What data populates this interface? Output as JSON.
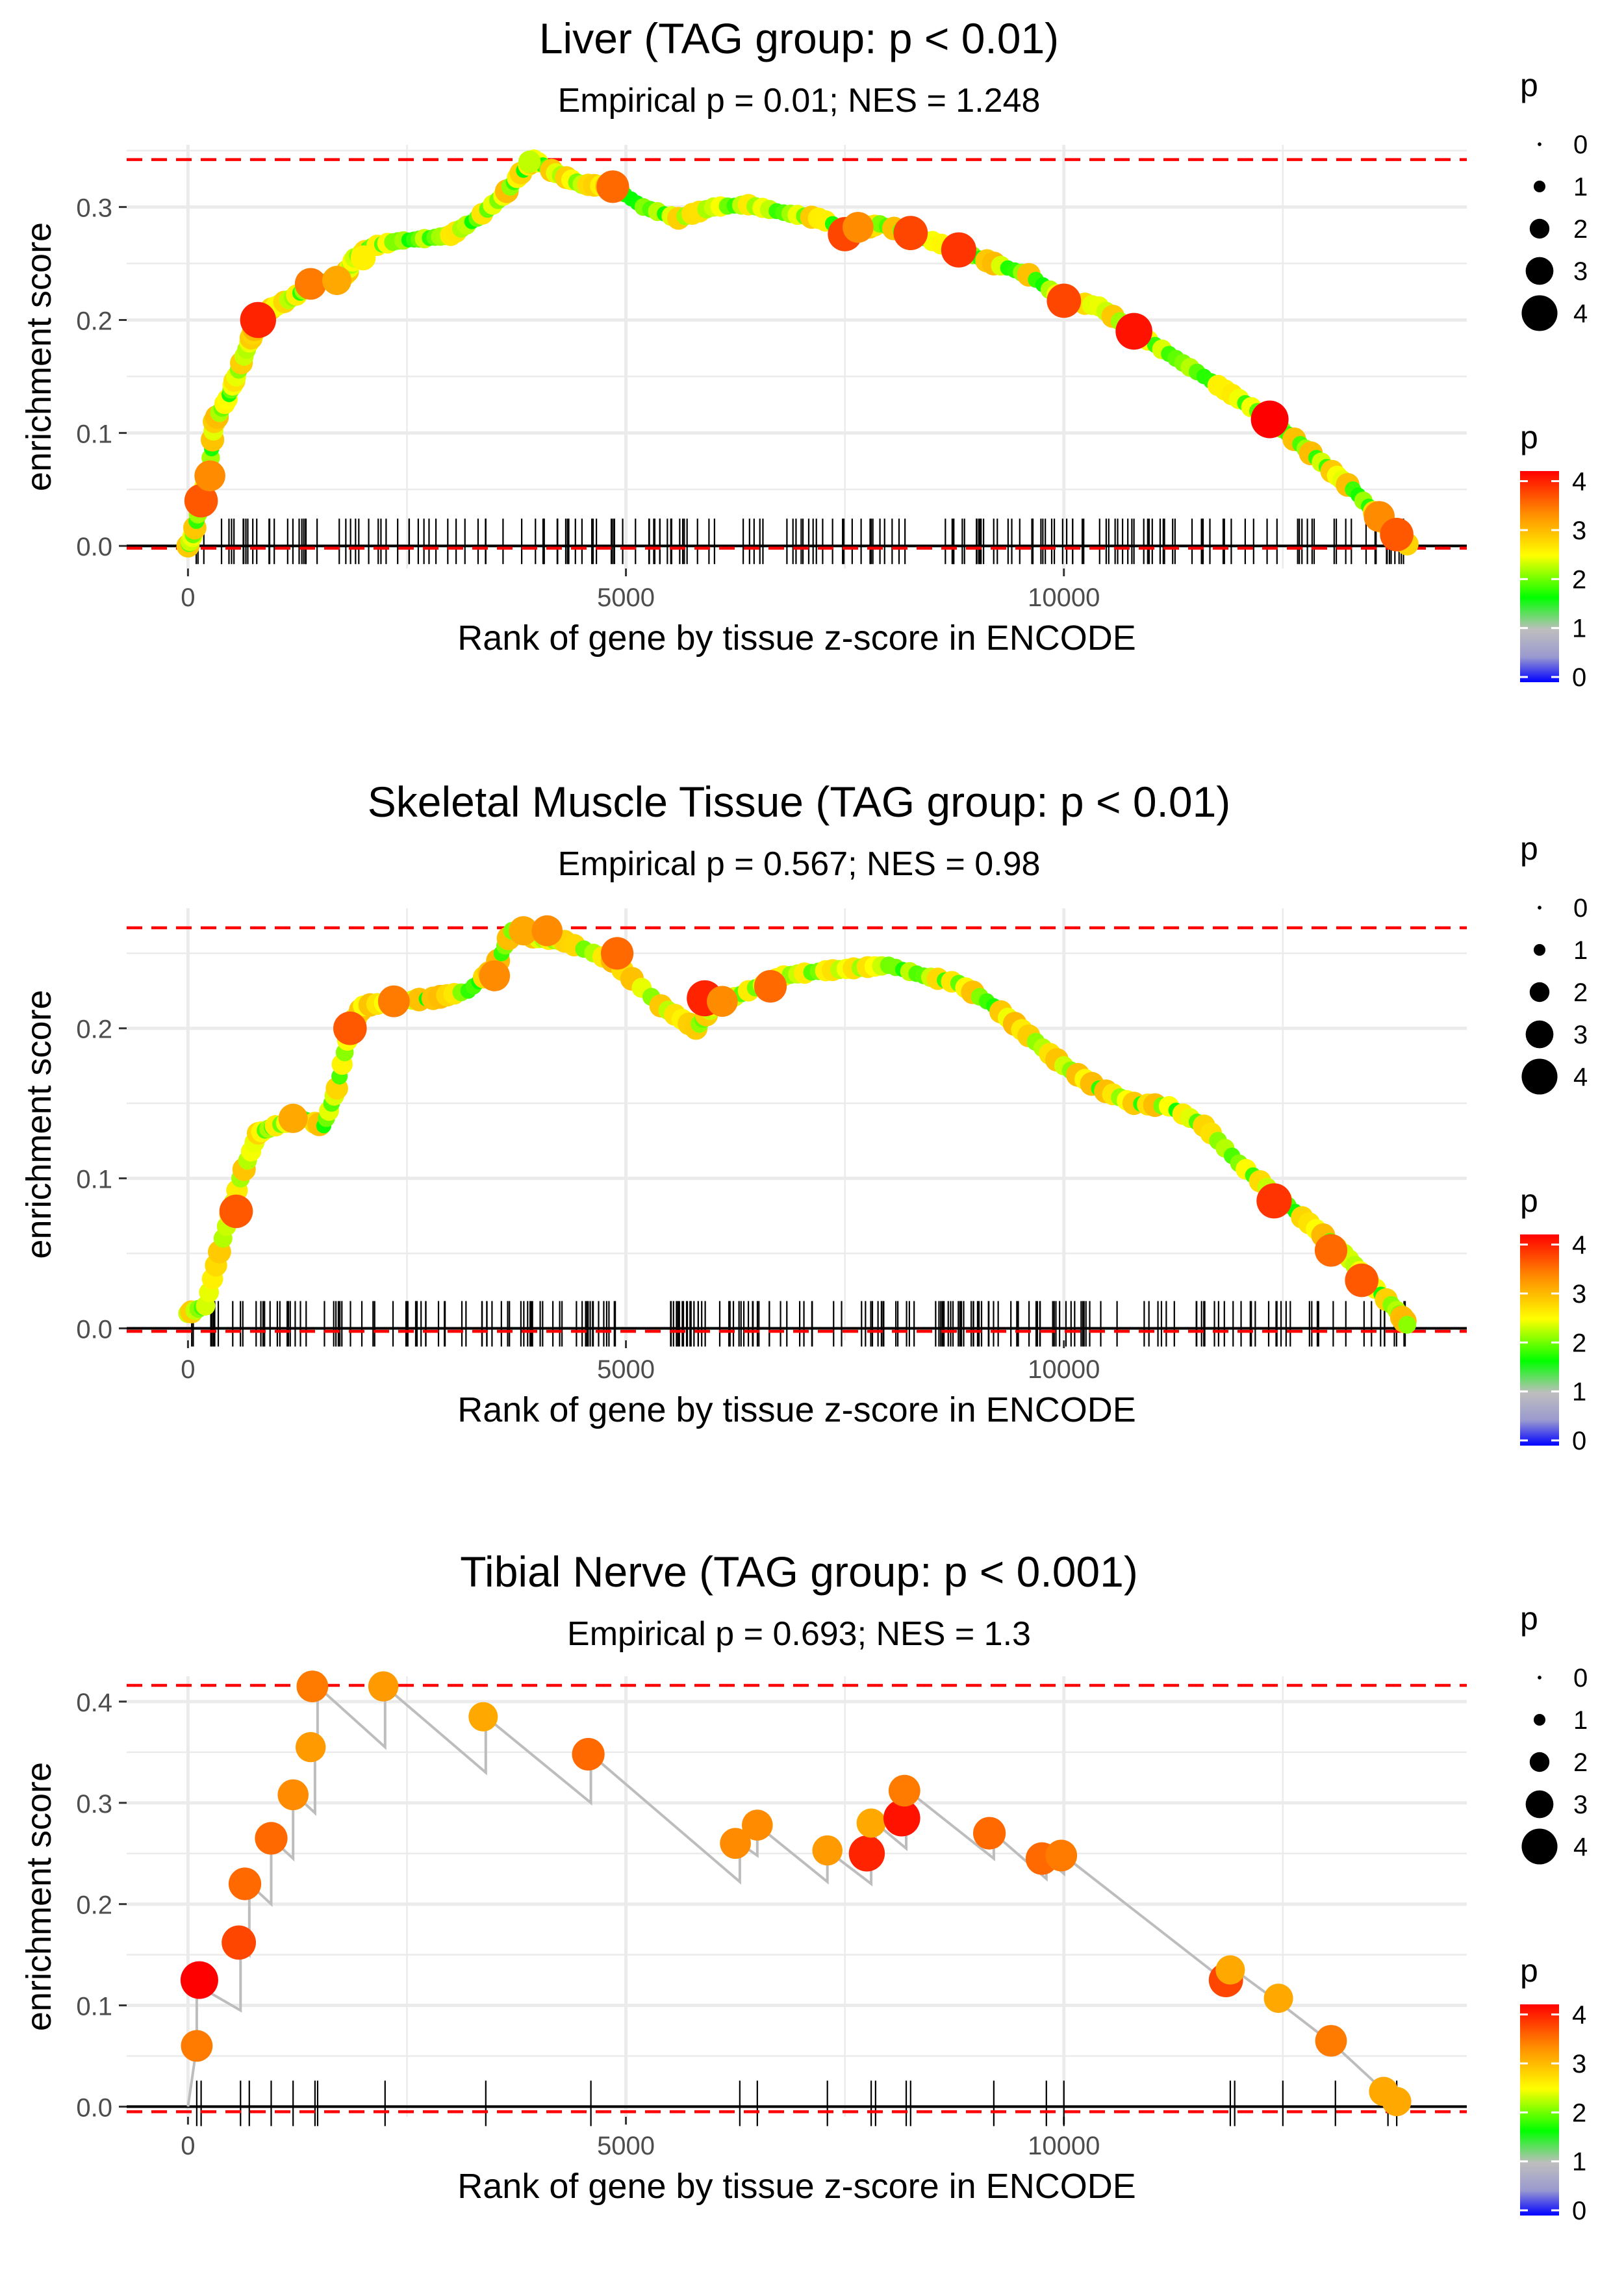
{
  "figure": {
    "legend_size_title": "p",
    "legend_size_labels": [
      "0",
      "1",
      "2",
      "3",
      "4"
    ],
    "legend_color_title": "p",
    "legend_color_labels": [
      "0",
      "1",
      "2",
      "3",
      "4"
    ],
    "color_scale": [
      "#0000ff",
      "#bebebe",
      "#00ff00",
      "#ffff00",
      "#ff8c00",
      "#ff0000"
    ]
  },
  "chart_data": [
    {
      "type": "line",
      "title": "Liver (TAG group: p < 0.01)",
      "subtitle": "Empirical p = 0.01; NES = 1.248",
      "xlabel": "Rank of gene by tissue z-score in ENCODE",
      "ylabel": "enrichment score",
      "xlim": [
        -700,
        14600
      ],
      "ylim": [
        -0.02,
        0.355
      ],
      "xticks": [
        0,
        5000,
        10000
      ],
      "xtick_labels": [
        "0",
        "5000",
        "10000"
      ],
      "yticks": [
        0,
        0.1,
        0.2,
        0.3
      ],
      "ytick_labels": [
        "0.0",
        "0.1",
        "0.2",
        "0.3"
      ],
      "ref_lines": [
        0.342,
        -0.002
      ],
      "n_hits": 195,
      "curve": [
        [
          0,
          0
        ],
        [
          60,
          0.01
        ],
        [
          150,
          0.04
        ],
        [
          250,
          0.07
        ],
        [
          300,
          0.11
        ],
        [
          450,
          0.13
        ],
        [
          550,
          0.15
        ],
        [
          700,
          0.18
        ],
        [
          800,
          0.2
        ],
        [
          950,
          0.21
        ],
        [
          1200,
          0.22
        ],
        [
          1400,
          0.23
        ],
        [
          1600,
          0.235
        ],
        [
          1800,
          0.24
        ],
        [
          1900,
          0.255
        ],
        [
          2100,
          0.265
        ],
        [
          2400,
          0.27
        ],
        [
          2700,
          0.272
        ],
        [
          3000,
          0.275
        ],
        [
          3300,
          0.29
        ],
        [
          3600,
          0.31
        ],
        [
          3800,
          0.33
        ],
        [
          3950,
          0.342
        ],
        [
          4200,
          0.33
        ],
        [
          4500,
          0.32
        ],
        [
          4850,
          0.318
        ],
        [
          5200,
          0.3
        ],
        [
          5600,
          0.29
        ],
        [
          6000,
          0.3
        ],
        [
          6400,
          0.302
        ],
        [
          6800,
          0.295
        ],
        [
          7200,
          0.29
        ],
        [
          7600,
          0.278
        ],
        [
          7900,
          0.285
        ],
        [
          8300,
          0.275
        ],
        [
          8800,
          0.262
        ],
        [
          9200,
          0.25
        ],
        [
          9600,
          0.24
        ],
        [
          10000,
          0.218
        ],
        [
          10400,
          0.212
        ],
        [
          10800,
          0.19
        ],
        [
          11200,
          0.17
        ],
        [
          11600,
          0.15
        ],
        [
          12000,
          0.13
        ],
        [
          12350,
          0.112
        ],
        [
          12700,
          0.09
        ],
        [
          13000,
          0.07
        ],
        [
          13300,
          0.05
        ],
        [
          13600,
          0.025
        ],
        [
          13800,
          0.008
        ],
        [
          13950,
          0
        ]
      ],
      "points": [
        [
          150,
          0.04,
          3.5
        ],
        [
          250,
          0.062,
          3.2
        ],
        [
          800,
          0.2,
          3.8
        ],
        [
          1400,
          0.232,
          3.3
        ],
        [
          1700,
          0.235,
          3.0
        ],
        [
          2000,
          0.255,
          2.5
        ],
        [
          3900,
          0.34,
          2.2
        ],
        [
          4850,
          0.318,
          3.4
        ],
        [
          7500,
          0.276,
          3.6
        ],
        [
          7650,
          0.282,
          3.2
        ],
        [
          8250,
          0.277,
          3.6
        ],
        [
          8800,
          0.262,
          3.7
        ],
        [
          10000,
          0.217,
          3.6
        ],
        [
          10800,
          0.19,
          3.9
        ],
        [
          12350,
          0.112,
          4.0
        ],
        [
          13600,
          0.026,
          3.2
        ],
        [
          13800,
          0.01,
          3.5
        ]
      ]
    },
    {
      "type": "line",
      "title": "Skeletal Muscle Tissue (TAG group: p < 0.01)",
      "subtitle": "Empirical p = 0.567; NES = 0.98",
      "xlabel": "Rank of gene by tissue z-score in ENCODE",
      "ylabel": "enrichment score",
      "xlim": [
        -700,
        14600
      ],
      "ylim": [
        -0.008,
        0.28
      ],
      "xticks": [
        0,
        5000,
        10000
      ],
      "xtick_labels": [
        "0",
        "5000",
        "10000"
      ],
      "yticks": [
        0,
        0.1,
        0.2
      ],
      "ytick_labels": [
        "0.0",
        "0.1",
        "0.2"
      ],
      "ref_lines": [
        0.267,
        -0.002
      ],
      "n_hits": 225,
      "curve": [
        [
          0,
          0.01
        ],
        [
          200,
          0.015
        ],
        [
          400,
          0.06
        ],
        [
          600,
          0.1
        ],
        [
          800,
          0.13
        ],
        [
          1000,
          0.135
        ],
        [
          1300,
          0.14
        ],
        [
          1550,
          0.135
        ],
        [
          1700,
          0.16
        ],
        [
          1850,
          0.2
        ],
        [
          2000,
          0.215
        ],
        [
          2400,
          0.218
        ],
        [
          2800,
          0.22
        ],
        [
          3200,
          0.225
        ],
        [
          3500,
          0.24
        ],
        [
          3700,
          0.265
        ],
        [
          4000,
          0.26
        ],
        [
          4300,
          0.258
        ],
        [
          4850,
          0.245
        ],
        [
          5400,
          0.215
        ],
        [
          5800,
          0.2
        ],
        [
          6000,
          0.215
        ],
        [
          6400,
          0.225
        ],
        [
          6800,
          0.235
        ],
        [
          7200,
          0.238
        ],
        [
          7600,
          0.24
        ],
        [
          8000,
          0.242
        ],
        [
          8400,
          0.235
        ],
        [
          8800,
          0.23
        ],
        [
          9200,
          0.215
        ],
        [
          9600,
          0.195
        ],
        [
          10000,
          0.175
        ],
        [
          10400,
          0.16
        ],
        [
          10800,
          0.15
        ],
        [
          11200,
          0.148
        ],
        [
          11600,
          0.135
        ],
        [
          12000,
          0.11
        ],
        [
          12400,
          0.09
        ],
        [
          12800,
          0.07
        ],
        [
          13200,
          0.05
        ],
        [
          13500,
          0.03
        ],
        [
          13800,
          0.012
        ],
        [
          13950,
          0
        ]
      ],
      "points": [
        [
          550,
          0.078,
          3.5
        ],
        [
          1200,
          0.14,
          3.0
        ],
        [
          1850,
          0.2,
          3.5
        ],
        [
          2350,
          0.218,
          3.3
        ],
        [
          3500,
          0.235,
          3.2
        ],
        [
          3830,
          0.265,
          3.0
        ],
        [
          4100,
          0.265,
          3.2
        ],
        [
          4900,
          0.25,
          3.4
        ],
        [
          5900,
          0.22,
          3.8
        ],
        [
          6100,
          0.218,
          3.2
        ],
        [
          6650,
          0.228,
          3.4
        ],
        [
          12400,
          0.085,
          3.7
        ],
        [
          13050,
          0.052,
          3.4
        ],
        [
          13400,
          0.032,
          3.5
        ]
      ]
    },
    {
      "type": "line",
      "title": "Tibial Nerve (TAG group: p < 0.001)",
      "subtitle": "Empirical p = 0.693; NES = 1.3",
      "xlabel": "Rank of gene by tissue z-score in ENCODE",
      "ylabel": "enrichment score",
      "xlim": [
        -700,
        14600
      ],
      "ylim": [
        -0.01,
        0.425
      ],
      "xticks": [
        0,
        5000,
        10000
      ],
      "xtick_labels": [
        "0",
        "5000",
        "10000"
      ],
      "yticks": [
        0,
        0.1,
        0.2,
        0.3,
        0.4
      ],
      "ytick_labels": [
        "0.0",
        "0.1",
        "0.2",
        "0.3",
        "0.4"
      ],
      "ref_lines": [
        0.416,
        -0.005
      ],
      "hits": [
        100,
        150,
        600,
        700,
        950,
        1200,
        1450,
        1480,
        2250,
        3400,
        4600,
        6300,
        6500,
        7300,
        7800,
        7850,
        8200,
        8250,
        9200,
        9800,
        10000,
        11900,
        11950,
        12500,
        13100,
        13700,
        13800
      ],
      "curve": [
        [
          0,
          0
        ],
        [
          100,
          0.06
        ],
        [
          100,
          0.12
        ],
        [
          600,
          0.095
        ],
        [
          600,
          0.16
        ],
        [
          700,
          0.15
        ],
        [
          700,
          0.22
        ],
        [
          950,
          0.2
        ],
        [
          950,
          0.265
        ],
        [
          1200,
          0.245
        ],
        [
          1200,
          0.31
        ],
        [
          1450,
          0.29
        ],
        [
          1450,
          0.35
        ],
        [
          1480,
          0.35
        ],
        [
          1480,
          0.415
        ],
        [
          2250,
          0.355
        ],
        [
          2250,
          0.415
        ],
        [
          3400,
          0.33
        ],
        [
          3400,
          0.385
        ],
        [
          4600,
          0.3
        ],
        [
          4600,
          0.348
        ],
        [
          6300,
          0.222
        ],
        [
          6300,
          0.26
        ],
        [
          6500,
          0.248
        ],
        [
          6500,
          0.278
        ],
        [
          7300,
          0.222
        ],
        [
          7300,
          0.253
        ],
        [
          7800,
          0.22
        ],
        [
          7800,
          0.25
        ],
        [
          7850,
          0.25
        ],
        [
          7850,
          0.28
        ],
        [
          8200,
          0.255
        ],
        [
          8200,
          0.285
        ],
        [
          8250,
          0.285
        ],
        [
          8250,
          0.31
        ],
        [
          9200,
          0.245
        ],
        [
          9200,
          0.27
        ],
        [
          9800,
          0.225
        ],
        [
          9800,
          0.245
        ],
        [
          10000,
          0.23
        ],
        [
          10000,
          0.248
        ],
        [
          11900,
          0.12
        ],
        [
          11950,
          0.135
        ],
        [
          12500,
          0.1
        ],
        [
          13100,
          0.06
        ],
        [
          13700,
          0.012
        ],
        [
          13850,
          0.004
        ]
      ],
      "points": [
        [
          100,
          0.06,
          3.3
        ],
        [
          130,
          0.125,
          4.0
        ],
        [
          580,
          0.162,
          3.6
        ],
        [
          650,
          0.22,
          3.4
        ],
        [
          950,
          0.265,
          3.4
        ],
        [
          1200,
          0.308,
          3.2
        ],
        [
          1400,
          0.355,
          3.1
        ],
        [
          1420,
          0.415,
          3.3
        ],
        [
          2230,
          0.415,
          3.1
        ],
        [
          3370,
          0.385,
          3.0
        ],
        [
          4570,
          0.348,
          3.4
        ],
        [
          6250,
          0.26,
          3.2
        ],
        [
          6500,
          0.278,
          3.2
        ],
        [
          7300,
          0.253,
          3.1
        ],
        [
          7750,
          0.25,
          3.8
        ],
        [
          7800,
          0.28,
          3.0
        ],
        [
          8150,
          0.285,
          3.9
        ],
        [
          8180,
          0.312,
          3.3
        ],
        [
          9150,
          0.27,
          3.4
        ],
        [
          9750,
          0.245,
          3.4
        ],
        [
          9970,
          0.248,
          3.3
        ],
        [
          11850,
          0.125,
          3.6
        ],
        [
          11900,
          0.135,
          3.0
        ],
        [
          12450,
          0.107,
          3.0
        ],
        [
          13050,
          0.065,
          3.3
        ],
        [
          13650,
          0.015,
          3.0
        ],
        [
          13800,
          0.005,
          3.0
        ]
      ]
    }
  ]
}
